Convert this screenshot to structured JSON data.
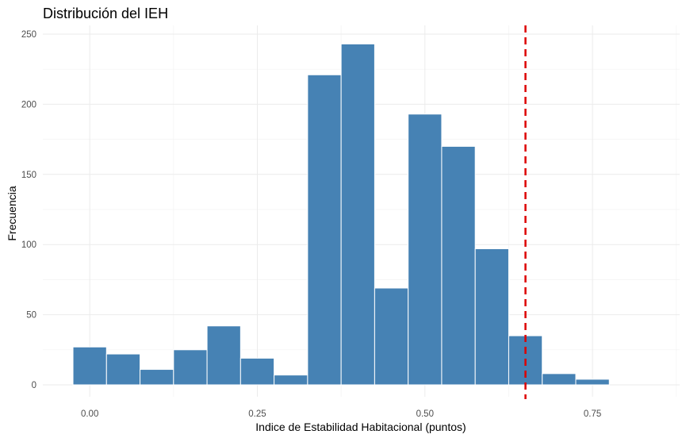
{
  "chart_data": {
    "type": "bar",
    "subtype": "histogram",
    "title": "Distribución del IEH",
    "xlabel": "Indice de Estabilidad Habitacional (puntos)",
    "ylabel": "Frecuencia",
    "xlim": [
      -0.07,
      0.88
    ],
    "ylim": [
      0,
      250
    ],
    "x_ticks": [
      0,
      0.25,
      0.5,
      0.75
    ],
    "x_tick_labels": [
      "0.00",
      "0.25",
      "0.50",
      "0.75"
    ],
    "y_ticks": [
      0,
      50,
      100,
      150,
      200,
      250
    ],
    "y_tick_labels": [
      "0",
      "50",
      "100",
      "150",
      "200",
      "250"
    ],
    "bin_width": 0.05,
    "bins": [
      {
        "start": -0.025,
        "end": 0.025,
        "count": 27
      },
      {
        "start": 0.025,
        "end": 0.075,
        "count": 22
      },
      {
        "start": 0.075,
        "end": 0.125,
        "count": 11
      },
      {
        "start": 0.125,
        "end": 0.175,
        "count": 25
      },
      {
        "start": 0.175,
        "end": 0.225,
        "count": 42
      },
      {
        "start": 0.225,
        "end": 0.275,
        "count": 19
      },
      {
        "start": 0.275,
        "end": 0.325,
        "count": 7
      },
      {
        "start": 0.325,
        "end": 0.375,
        "count": 221
      },
      {
        "start": 0.375,
        "end": 0.425,
        "count": 243
      },
      {
        "start": 0.425,
        "end": 0.475,
        "count": 69
      },
      {
        "start": 0.475,
        "end": 0.525,
        "count": 193
      },
      {
        "start": 0.525,
        "end": 0.575,
        "count": 170
      },
      {
        "start": 0.575,
        "end": 0.625,
        "count": 97
      },
      {
        "start": 0.625,
        "end": 0.675,
        "count": 35
      },
      {
        "start": 0.675,
        "end": 0.725,
        "count": 8
      },
      {
        "start": 0.725,
        "end": 0.775,
        "count": 4
      }
    ],
    "reference_line": {
      "x": 0.65,
      "style": "dashed",
      "color": "#dd0000"
    },
    "bar_color": "#4682b4",
    "bar_edge_color": "#ffffff",
    "grid": true,
    "legend": "none"
  }
}
